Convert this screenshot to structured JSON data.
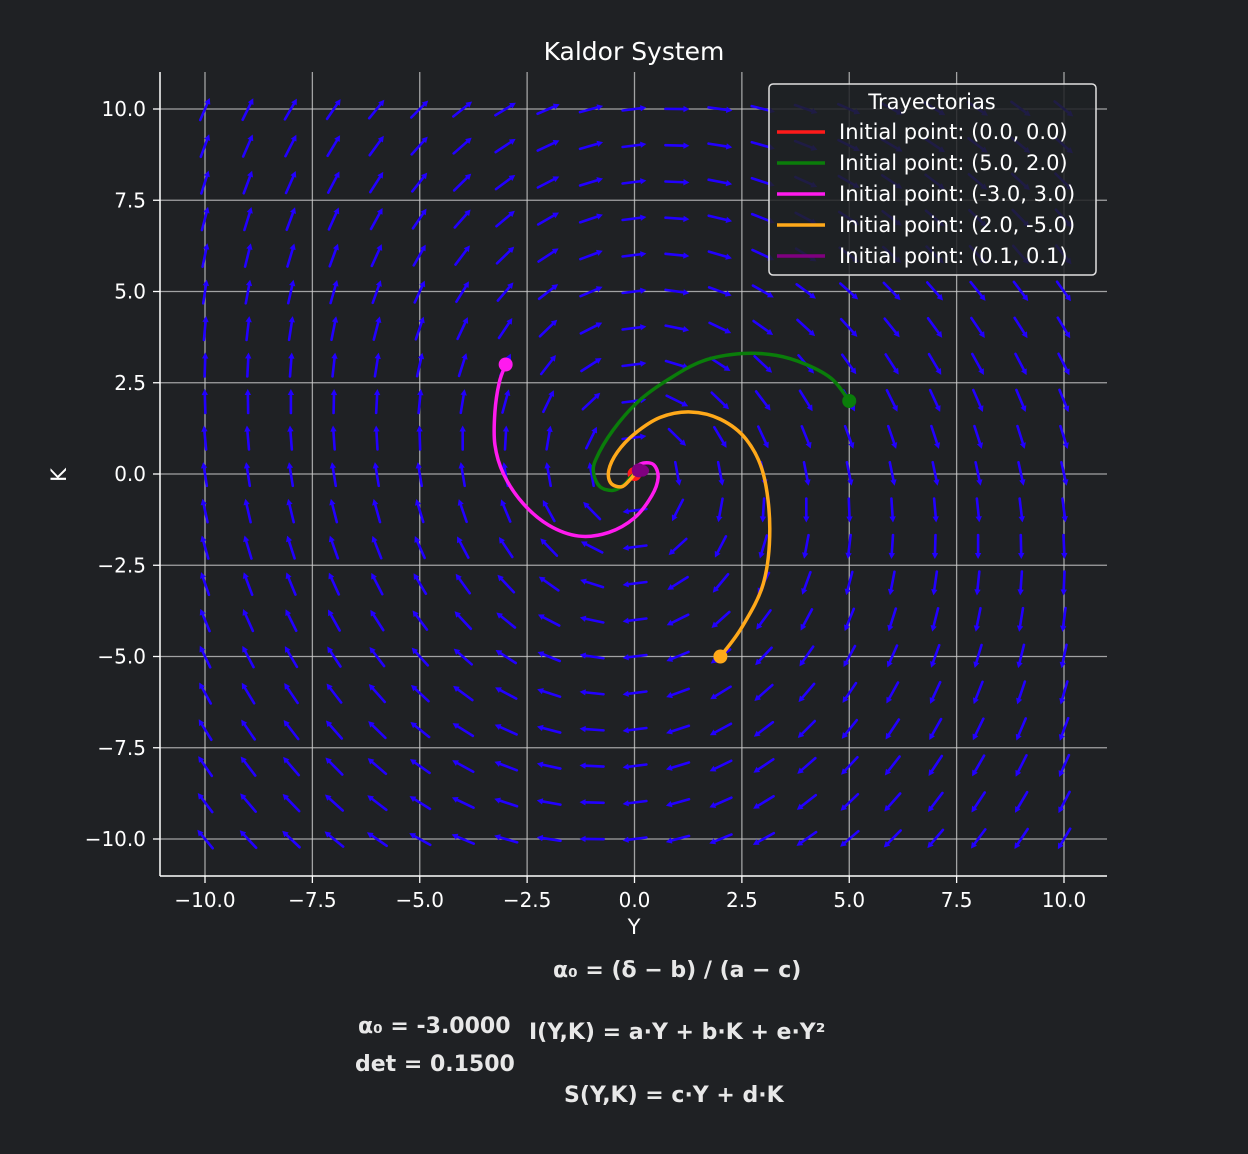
{
  "chart_data": {
    "type": "line",
    "title": "Kaldor System",
    "xlabel": "Y",
    "ylabel": "K",
    "xlim": [
      -11,
      11
    ],
    "ylim": [
      -11,
      11
    ],
    "grid": true,
    "xticks": [
      -10.0,
      -7.5,
      -5.0,
      -2.5,
      0.0,
      2.5,
      5.0,
      7.5,
      10.0
    ],
    "yticks": [
      -10.0,
      -7.5,
      -5.0,
      -2.5,
      0.0,
      2.5,
      5.0,
      7.5,
      10.0
    ],
    "xtick_labels": [
      "−10.0",
      "−7.5",
      "−5.0",
      "−2.5",
      "0.0",
      "2.5",
      "5.0",
      "7.5",
      "10.0"
    ],
    "ytick_labels": [
      "−10.0",
      "−7.5",
      "−5.0",
      "−2.5",
      "0.0",
      "2.5",
      "5.0",
      "7.5",
      "10.0"
    ],
    "legend": {
      "title": "Trayectorias",
      "position": "top-right"
    },
    "vector_field": {
      "color": "#2200ff",
      "x_range": [
        -10,
        10
      ],
      "y_range": [
        -10,
        10
      ],
      "count": 21
    },
    "series": [
      {
        "name": "Initial point: (0.0, 0.0)",
        "color": "#ff1a1a",
        "start": [
          0.0,
          0.0
        ],
        "points": [
          [
            0.0,
            0.0
          ]
        ]
      },
      {
        "name": "Initial point: (5.0, 2.0)",
        "color": "#0a7d0a",
        "start": [
          5.0,
          2.0
        ],
        "points": [
          [
            5.0,
            2.0
          ],
          [
            4.6,
            2.6
          ],
          [
            4.0,
            3.0
          ],
          [
            3.3,
            3.25
          ],
          [
            2.5,
            3.3
          ],
          [
            1.6,
            3.1
          ],
          [
            0.8,
            2.6
          ],
          [
            0.1,
            2.0
          ],
          [
            -0.5,
            1.2
          ],
          [
            -0.9,
            0.4
          ],
          [
            -0.95,
            0.0
          ],
          [
            -0.8,
            -0.35
          ],
          [
            -0.5,
            -0.45
          ],
          [
            -0.25,
            -0.3
          ],
          [
            -0.1,
            -0.1
          ],
          [
            0.0,
            0.0
          ]
        ]
      },
      {
        "name": "Initial point: (-3.0, 3.0)",
        "color": "#ff1aef",
        "start": [
          -3.0,
          3.0
        ],
        "points": [
          [
            -3.0,
            3.0
          ],
          [
            -3.15,
            2.5
          ],
          [
            -3.25,
            1.7
          ],
          [
            -3.25,
            0.8
          ],
          [
            -3.05,
            0.0
          ],
          [
            -2.6,
            -0.8
          ],
          [
            -2.0,
            -1.4
          ],
          [
            -1.3,
            -1.7
          ],
          [
            -0.6,
            -1.6
          ],
          [
            0.0,
            -1.2
          ],
          [
            0.4,
            -0.6
          ],
          [
            0.55,
            -0.1
          ],
          [
            0.45,
            0.25
          ],
          [
            0.2,
            0.3
          ],
          [
            0.0,
            0.15
          ],
          [
            0.0,
            0.0
          ]
        ]
      },
      {
        "name": "Initial point: (2.0, -5.0)",
        "color": "#ffa91a",
        "start": [
          2.0,
          -5.0
        ],
        "points": [
          [
            2.0,
            -5.0
          ],
          [
            2.5,
            -4.2
          ],
          [
            3.0,
            -3.0
          ],
          [
            3.15,
            -1.5
          ],
          [
            3.0,
            0.0
          ],
          [
            2.6,
            0.95
          ],
          [
            2.0,
            1.5
          ],
          [
            1.3,
            1.7
          ],
          [
            0.6,
            1.55
          ],
          [
            0.0,
            1.1
          ],
          [
            -0.4,
            0.6
          ],
          [
            -0.6,
            0.1
          ],
          [
            -0.55,
            -0.25
          ],
          [
            -0.3,
            -0.35
          ],
          [
            -0.1,
            -0.15
          ],
          [
            0.0,
            0.0
          ]
        ]
      },
      {
        "name": "Initial point: (0.1, 0.1)",
        "color": "#800080",
        "start": [
          0.1,
          0.1
        ],
        "points": [
          [
            0.1,
            0.1
          ],
          [
            0.15,
            0.2
          ],
          [
            0.25,
            0.18
          ],
          [
            0.3,
            0.08
          ],
          [
            0.22,
            -0.02
          ],
          [
            0.1,
            0.0
          ],
          [
            0.0,
            0.0
          ]
        ]
      }
    ]
  },
  "formulas": {
    "alpha_definition": "α₀ = (δ − b) / (a − c)",
    "alpha_value": "α₀ = -3.0000",
    "det_value": "det = 0.1500",
    "investment": "I(Y,K) = a·Y + b·K + e·Y²",
    "saving": "S(Y,K) = c·Y + d·K"
  }
}
